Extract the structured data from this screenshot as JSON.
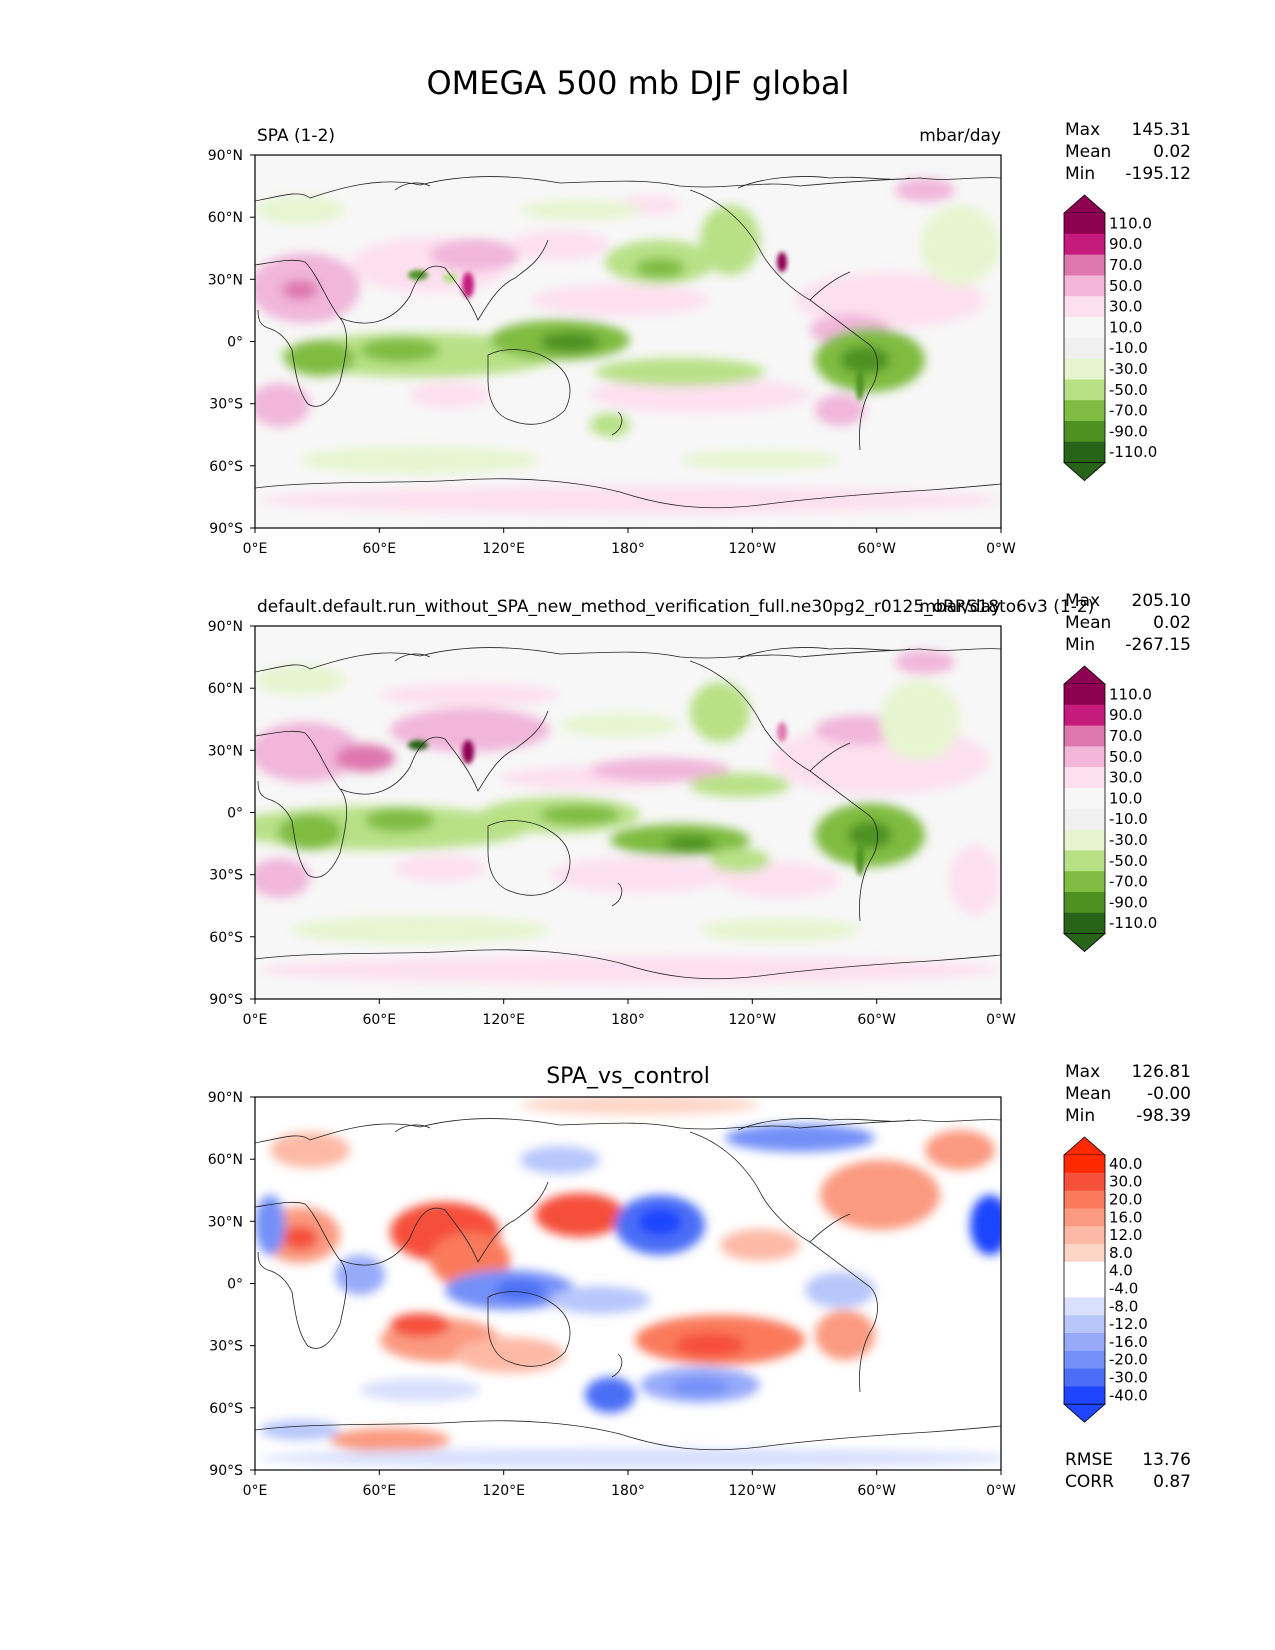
{
  "title": "OMEGA 500 mb DJF global",
  "x_ticks": [
    "0°E",
    "60°E",
    "120°E",
    "180°",
    "120°W",
    "60°W",
    "0°W"
  ],
  "y_ticks": [
    "90°N",
    "60°N",
    "30°N",
    "0°",
    "30°S",
    "60°S",
    "90°S"
  ],
  "panels": [
    {
      "left_title": "SPA (1-2)",
      "right_title": "mbar/day",
      "center_title": "",
      "stats": {
        "max_label": "Max",
        "max": "145.31",
        "mean_label": "Mean",
        "mean": "0.02",
        "min_label": "Min",
        "min": "-195.12"
      },
      "colorbar_labels": [
        "110.0",
        "90.0",
        "70.0",
        "50.0",
        "30.0",
        "10.0",
        "-10.0",
        "-30.0",
        "-50.0",
        "-70.0",
        "-90.0",
        "-110.0"
      ]
    },
    {
      "left_title": "default.default.run_without_SPA_new_method_verification_full.ne30pg2_r0125_oRRS18to6v3 (1-2)",
      "right_title": "mbar/day",
      "center_title": "",
      "stats": {
        "max_label": "Max",
        "max": "205.10",
        "mean_label": "Mean",
        "mean": "0.02",
        "min_label": "Min",
        "min": "-267.15"
      },
      "colorbar_labels": [
        "110.0",
        "90.0",
        "70.0",
        "50.0",
        "30.0",
        "10.0",
        "-10.0",
        "-30.0",
        "-50.0",
        "-70.0",
        "-90.0",
        "-110.0"
      ]
    },
    {
      "left_title": "",
      "right_title": "",
      "center_title": "SPA_vs_control",
      "stats": {
        "max_label": "Max",
        "max": "126.81",
        "mean_label": "Mean",
        "mean": "-0.00",
        "min_label": "Min",
        "min": "-98.39"
      },
      "colorbar_labels": [
        "40.0",
        "30.0",
        "20.0",
        "16.0",
        "12.0",
        "8.0",
        "4.0",
        "-4.0",
        "-8.0",
        "-12.0",
        "-16.0",
        "-20.0",
        "-30.0",
        "-40.0"
      ],
      "rmse_label": "RMSE",
      "rmse": "13.76",
      "corr_label": "CORR",
      "corr": "0.87"
    }
  ],
  "colors": {
    "prgn": [
      "#8e0152",
      "#c51b7d",
      "#de77ae",
      "#f1b6da",
      "#fde0ef",
      "#f7f7f7",
      "#f0f0f0",
      "#e6f5d0",
      "#b8e186",
      "#7fbc41",
      "#4d9221",
      "#276419"
    ],
    "diff": [
      "#ff2a00",
      "#f5503a",
      "#fa7a5c",
      "#fb9a80",
      "#fdb9a6",
      "#fed5c7",
      "#ffffff",
      "#ffffff",
      "#d8e0fd",
      "#b7c6fb",
      "#97aafa",
      "#7390f8",
      "#4c6ef6",
      "#1f45ff"
    ]
  },
  "chart_data": [
    {
      "type": "heatmap",
      "title": "SPA (1-2)",
      "units": "mbar/day",
      "variable": "OMEGA 500 mb",
      "season": "DJF",
      "xlim": [
        0,
        360
      ],
      "ylim": [
        -90,
        90
      ],
      "stats": {
        "max": 145.31,
        "mean": 0.02,
        "min": -195.12
      },
      "levels": [
        -110,
        -90,
        -70,
        -50,
        -30,
        -10,
        10,
        30,
        50,
        70,
        90,
        110
      ]
    },
    {
      "type": "heatmap",
      "title": "default.default.run_without_SPA_new_method_verification_full.ne30pg2_r0125_oRRS18to6v3 (1-2)",
      "units": "mbar/day",
      "xlim": [
        0,
        360
      ],
      "ylim": [
        -90,
        90
      ],
      "stats": {
        "max": 205.1,
        "mean": 0.02,
        "min": -267.15
      },
      "levels": [
        -110,
        -90,
        -70,
        -50,
        -30,
        -10,
        10,
        30,
        50,
        70,
        90,
        110
      ]
    },
    {
      "type": "heatmap",
      "title": "SPA_vs_control",
      "xlim": [
        0,
        360
      ],
      "ylim": [
        -90,
        90
      ],
      "stats": {
        "max": 126.81,
        "mean": -0.0,
        "min": -98.39,
        "rmse": 13.76,
        "corr": 0.87
      },
      "levels": [
        -40,
        -30,
        -20,
        -16,
        -12,
        -8,
        -4,
        4,
        8,
        12,
        16,
        20,
        30,
        40
      ]
    }
  ]
}
